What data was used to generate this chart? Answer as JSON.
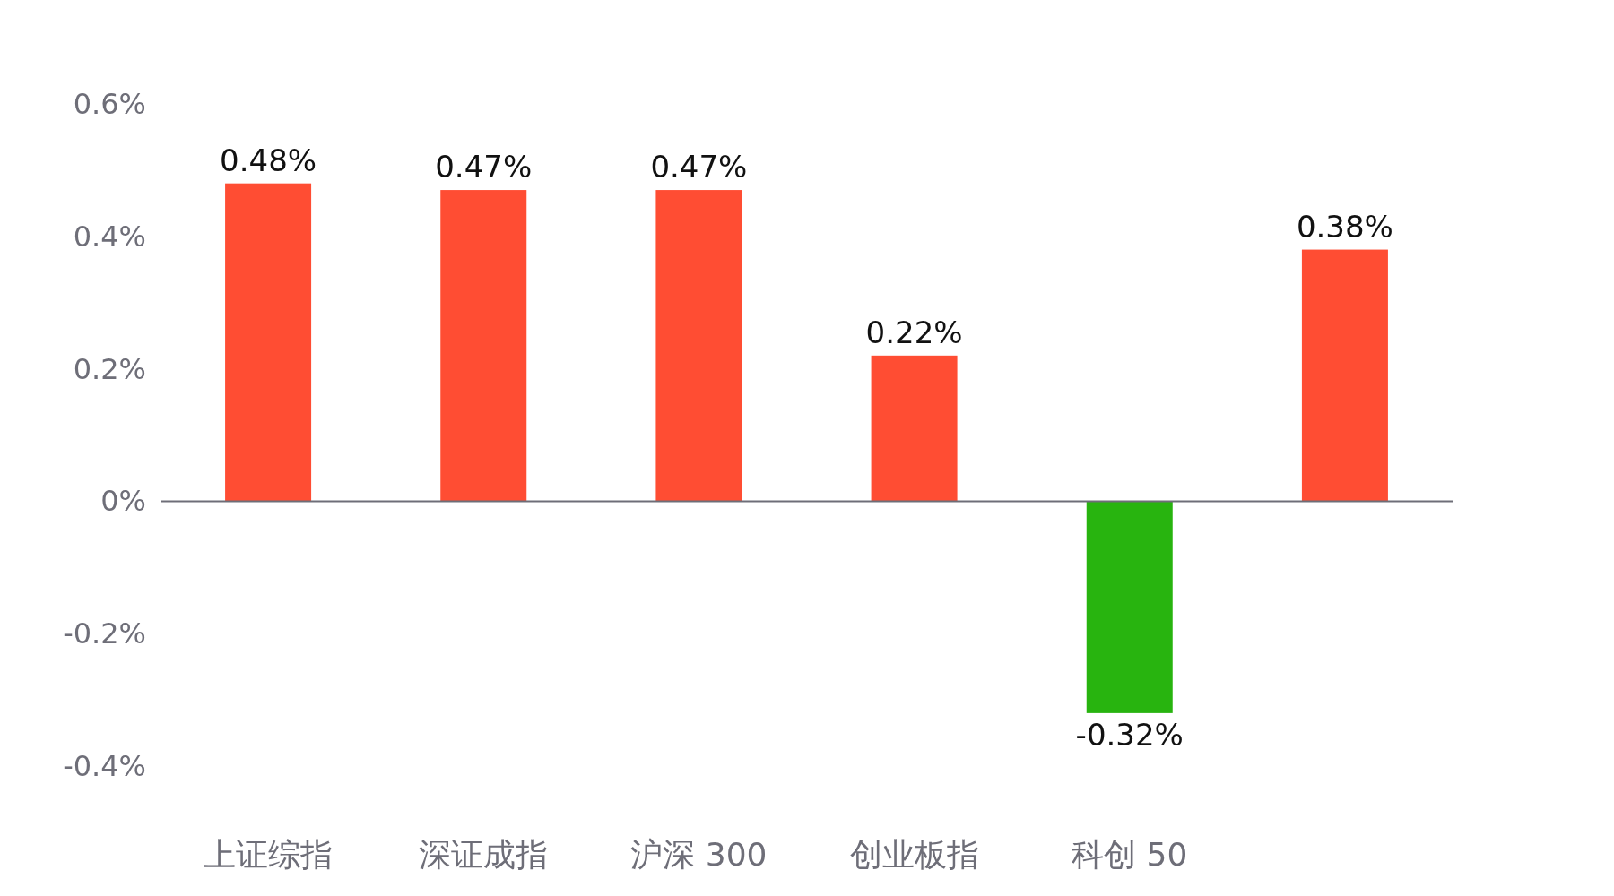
{
  "chart_data": {
    "type": "bar",
    "categories": [
      "上证综指",
      "深证成指",
      "沪深 300",
      "创业板指",
      "科创 50",
      null
    ],
    "values": [
      0.48,
      0.47,
      0.47,
      0.22,
      -0.32,
      0.38
    ],
    "colors": [
      "#ff4d33",
      "#ff4d33",
      "#ff4d33",
      "#ff4d33",
      "#28b40f",
      "#ff4d33"
    ],
    "value_labels": [
      "0.48%",
      "0.47%",
      "0.47%",
      "0.22%",
      "-0.32%",
      "0.38%"
    ],
    "ylim": [
      -0.4,
      0.6
    ],
    "yticks": [
      {
        "value": -0.4,
        "label": "-0.4%"
      },
      {
        "value": -0.2,
        "label": "-0.2%"
      },
      {
        "value": 0,
        "label": "0%"
      },
      {
        "value": 0.2,
        "label": "0.2%"
      },
      {
        "value": 0.4,
        "label": "0.4%"
      },
      {
        "value": 0.6,
        "label": "0.6%"
      }
    ]
  }
}
